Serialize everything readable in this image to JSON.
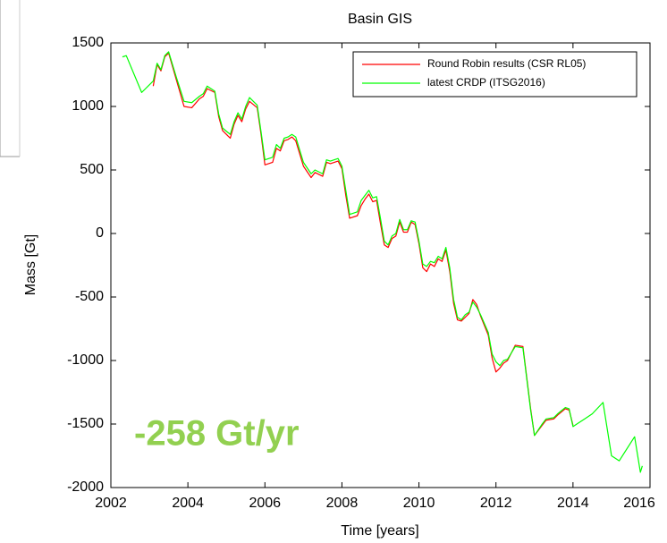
{
  "chart_data": {
    "type": "line",
    "title": "Basin GIS",
    "xlabel": "Time [years]",
    "ylabel": "Mass [Gt]",
    "annotation": "-258 Gt/yr",
    "xlim": [
      2002,
      2016
    ],
    "xticks": [
      2002,
      2004,
      2006,
      2008,
      2010,
      2012,
      2014,
      2016
    ],
    "ylim": [
      -2000,
      1500
    ],
    "yticks": [
      -2000,
      -1500,
      -1000,
      -500,
      0,
      500,
      1000,
      1500
    ],
    "legend": "upper right",
    "grid": false,
    "series": [
      {
        "name": "Round Robin results (CSR RL05)",
        "color": "#ff0000",
        "x": [
          2003.1,
          2003.2,
          2003.3,
          2003.4,
          2003.5,
          2003.7,
          2003.9,
          2004.1,
          2004.3,
          2004.4,
          2004.5,
          2004.7,
          2004.8,
          2004.9,
          2005.1,
          2005.2,
          2005.3,
          2005.4,
          2005.5,
          2005.6,
          2005.8,
          2005.9,
          2006.0,
          2006.2,
          2006.3,
          2006.4,
          2006.5,
          2006.6,
          2006.7,
          2006.8,
          2007.0,
          2007.2,
          2007.3,
          2007.5,
          2007.6,
          2007.7,
          2007.9,
          2008.0,
          2008.1,
          2008.2,
          2008.4,
          2008.5,
          2008.6,
          2008.7,
          2008.8,
          2008.9,
          2009.0,
          2009.1,
          2009.2,
          2009.3,
          2009.4,
          2009.5,
          2009.6,
          2009.7,
          2009.8,
          2009.9,
          2010.0,
          2010.1,
          2010.2,
          2010.3,
          2010.4,
          2010.5,
          2010.6,
          2010.7,
          2010.8,
          2010.9,
          2011.0,
          2011.1,
          2011.2,
          2011.3,
          2011.4,
          2011.5,
          2011.6,
          2011.8,
          2011.9,
          2012.0,
          2012.1,
          2012.2,
          2012.3,
          2012.5,
          2012.7,
          2012.9,
          2013.0,
          2013.2,
          2013.3,
          2013.5,
          2013.6,
          2013.8,
          2013.9,
          2014.0
        ],
        "values": [
          1160,
          1330,
          1280,
          1390,
          1420,
          1210,
          1000,
          990,
          1060,
          1080,
          1140,
          1110,
          920,
          810,
          750,
          860,
          930,
          880,
          980,
          1040,
          990,
          780,
          540,
          560,
          670,
          650,
          730,
          740,
          760,
          730,
          530,
          440,
          480,
          450,
          560,
          550,
          570,
          510,
          300,
          120,
          140,
          220,
          270,
          310,
          250,
          260,
          80,
          -90,
          -110,
          -40,
          -20,
          90,
          10,
          10,
          90,
          70,
          -80,
          -270,
          -300,
          -240,
          -260,
          -200,
          -220,
          -130,
          -300,
          -550,
          -680,
          -690,
          -660,
          -630,
          -520,
          -560,
          -650,
          -800,
          -980,
          -1090,
          -1060,
          -1020,
          -1000,
          -880,
          -890,
          -1380,
          -1590,
          -1510,
          -1470,
          -1460,
          -1430,
          -1380,
          -1390,
          -1510
        ]
      },
      {
        "name": "latest CRDP (ITSG2016)",
        "color": "#00ff00",
        "x": [
          2002.3,
          2002.4,
          2002.8,
          2003.1,
          2003.2,
          2003.3,
          2003.4,
          2003.5,
          2003.7,
          2003.9,
          2004.1,
          2004.3,
          2004.4,
          2004.5,
          2004.7,
          2004.8,
          2004.9,
          2005.1,
          2005.2,
          2005.3,
          2005.4,
          2005.5,
          2005.6,
          2005.8,
          2005.9,
          2006.0,
          2006.2,
          2006.3,
          2006.4,
          2006.5,
          2006.6,
          2006.7,
          2006.8,
          2007.0,
          2007.2,
          2007.3,
          2007.5,
          2007.6,
          2007.7,
          2007.9,
          2008.0,
          2008.1,
          2008.2,
          2008.4,
          2008.5,
          2008.6,
          2008.7,
          2008.8,
          2008.9,
          2009.0,
          2009.1,
          2009.2,
          2009.3,
          2009.4,
          2009.5,
          2009.6,
          2009.7,
          2009.8,
          2009.9,
          2010.0,
          2010.1,
          2010.2,
          2010.3,
          2010.4,
          2010.5,
          2010.6,
          2010.7,
          2010.8,
          2010.9,
          2011.0,
          2011.1,
          2011.2,
          2011.3,
          2011.4,
          2011.5,
          2011.6,
          2011.8,
          2011.9,
          2012.0,
          2012.1,
          2012.2,
          2012.3,
          2012.5,
          2012.7,
          2012.9,
          2013.0,
          2013.2,
          2013.3,
          2013.5,
          2013.6,
          2013.8,
          2013.9,
          2014.0,
          2014.1,
          2014.3,
          2014.5,
          2014.78,
          2015.0,
          2015.2,
          2015.6,
          2015.75,
          2015.8
        ],
        "values": [
          1390,
          1400,
          1110,
          1200,
          1340,
          1290,
          1400,
          1430,
          1230,
          1040,
          1030,
          1080,
          1100,
          1160,
          1120,
          940,
          830,
          780,
          880,
          950,
          900,
          1000,
          1070,
          1010,
          800,
          580,
          600,
          700,
          670,
          750,
          760,
          780,
          760,
          560,
          470,
          500,
          470,
          580,
          570,
          590,
          530,
          340,
          150,
          170,
          260,
          300,
          340,
          280,
          290,
          120,
          -60,
          -90,
          -20,
          0,
          110,
          30,
          30,
          100,
          90,
          -60,
          -240,
          -260,
          -220,
          -230,
          -180,
          -200,
          -110,
          -270,
          -520,
          -660,
          -680,
          -640,
          -620,
          -540,
          -580,
          -640,
          -780,
          -950,
          -1010,
          -1040,
          -1000,
          -990,
          -890,
          -900,
          -1390,
          -1590,
          -1500,
          -1460,
          -1450,
          -1420,
          -1370,
          -1380,
          -1520,
          -1500,
          -1460,
          -1420,
          -1330,
          -1750,
          -1790,
          -1600,
          -1880,
          -1830
        ]
      }
    ]
  }
}
